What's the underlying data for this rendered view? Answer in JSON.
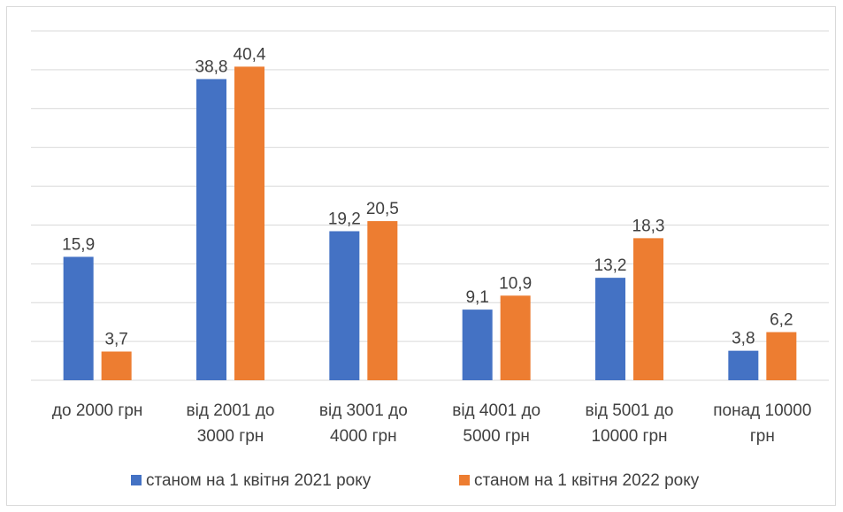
{
  "chart_data": {
    "type": "bar",
    "categories": [
      [
        "до 2000 грн"
      ],
      [
        "від 2001 до",
        "3000 грн"
      ],
      [
        "від 3001 до",
        "4000 грн"
      ],
      [
        "від 4001 до",
        "5000 грн"
      ],
      [
        "від 5001 до",
        "10000 грн"
      ],
      [
        "понад 10000",
        "грн"
      ]
    ],
    "series": [
      {
        "name": "станом на 1 квітня  2021 року",
        "color": "#4472C4",
        "values": [
          15.9,
          38.8,
          19.2,
          9.1,
          13.2,
          3.8
        ],
        "labels": [
          "15,9",
          "38,8",
          "19,2",
          "9,1",
          "13,2",
          "3,8"
        ]
      },
      {
        "name": "станом на 1 квітня  2022 року",
        "color": "#ED7D31",
        "values": [
          3.7,
          40.4,
          20.5,
          10.9,
          18.3,
          6.2
        ],
        "labels": [
          "3,7",
          "40,4",
          "20,5",
          "10,9",
          "18,3",
          "6,2"
        ]
      }
    ],
    "ylim": [
      0,
      45
    ],
    "grid": true,
    "legend": "bottom"
  }
}
